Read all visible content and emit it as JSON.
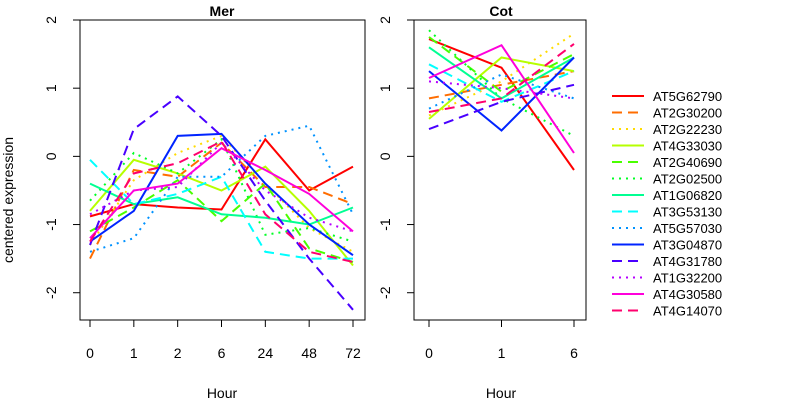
{
  "chart_data": [
    {
      "type": "line",
      "title": "Mer",
      "xlabel": "Hour",
      "ylabel": "centered expression",
      "x": [
        "0",
        "1",
        "2",
        "6",
        "24",
        "48",
        "72"
      ],
      "ylim": [
        -2.4,
        2
      ],
      "yticks": [
        -2,
        -1,
        0,
        1,
        2
      ],
      "grid": false,
      "series": [
        {
          "name": "AT5G62790",
          "values": [
            -0.88,
            -0.7,
            -0.75,
            -0.78,
            0.25,
            -0.5,
            -0.15
          ]
        },
        {
          "name": "AT2G30200",
          "values": [
            -1.5,
            -0.2,
            -0.3,
            0.2,
            -0.45,
            -0.45,
            -0.7
          ]
        },
        {
          "name": "AT2G22230",
          "values": [
            -1.3,
            -0.35,
            0.05,
            0.3,
            -0.4,
            -1.05,
            -1.4
          ]
        },
        {
          "name": "AT4G33030",
          "values": [
            -0.8,
            -0.05,
            -0.25,
            -0.5,
            -0.15,
            -0.8,
            -1.6
          ]
        },
        {
          "name": "AT2G40690",
          "values": [
            -1.1,
            -0.75,
            -0.35,
            -0.95,
            -0.4,
            -1.35,
            -1.55
          ]
        },
        {
          "name": "AT2G02500",
          "values": [
            -0.65,
            0.05,
            -0.25,
            0.25,
            -1.15,
            -1.05,
            -1.25
          ]
        },
        {
          "name": "AT1G06820",
          "values": [
            -0.4,
            -0.7,
            -0.6,
            -0.85,
            -0.9,
            -1.0,
            -0.75
          ]
        },
        {
          "name": "AT3G53130",
          "values": [
            -0.05,
            -0.7,
            -0.55,
            -0.3,
            -1.4,
            -1.5,
            -1.5
          ]
        },
        {
          "name": "AT5G57030",
          "values": [
            -1.4,
            -1.2,
            -0.3,
            -0.3,
            0.3,
            0.45,
            -0.85
          ]
        },
        {
          "name": "AT3G04870",
          "values": [
            -1.25,
            -0.8,
            0.3,
            0.33,
            -0.4,
            -1.0,
            -1.45
          ]
        },
        {
          "name": "AT4G31780",
          "values": [
            -1.3,
            0.4,
            0.88,
            0.3,
            -0.65,
            -1.5,
            -2.25
          ]
        },
        {
          "name": "AT1G32200",
          "values": [
            -0.85,
            -0.5,
            -0.45,
            0.2,
            -0.5,
            -0.9,
            -1.1
          ]
        },
        {
          "name": "AT4G30580",
          "values": [
            -1.2,
            -0.5,
            -0.4,
            0.12,
            -0.2,
            -0.55,
            -1.1
          ]
        },
        {
          "name": "AT4G14070",
          "values": [
            -1.25,
            -0.25,
            -0.1,
            0.22,
            -0.85,
            -1.4,
            -1.55
          ]
        }
      ]
    },
    {
      "type": "line",
      "title": "Cot",
      "xlabel": "Hour",
      "ylabel": "",
      "x": [
        "0",
        "1",
        "6"
      ],
      "ylim": [
        -2.4,
        2
      ],
      "yticks": [
        -2,
        -1,
        0,
        1,
        2
      ],
      "grid": false,
      "series": [
        {
          "name": "AT5G62790",
          "values": [
            1.72,
            1.3,
            -0.2
          ]
        },
        {
          "name": "AT2G30200",
          "values": [
            0.85,
            1.05,
            1.25
          ]
        },
        {
          "name": "AT2G22230",
          "values": [
            0.6,
            1.1,
            1.8
          ]
        },
        {
          "name": "AT4G33030",
          "values": [
            0.55,
            1.45,
            1.25
          ]
        },
        {
          "name": "AT2G40690",
          "values": [
            1.75,
            0.95,
            1.5
          ]
        },
        {
          "name": "AT2G02500",
          "values": [
            1.85,
            0.85,
            0.3
          ]
        },
        {
          "name": "AT1G06820",
          "values": [
            1.6,
            0.85,
            1.45
          ]
        },
        {
          "name": "AT3G53130",
          "values": [
            1.35,
            0.8,
            1.25
          ]
        },
        {
          "name": "AT5G57030",
          "values": [
            0.7,
            1.2,
            0.85
          ]
        },
        {
          "name": "AT3G04870",
          "values": [
            1.25,
            0.38,
            1.45
          ]
        },
        {
          "name": "AT4G31780",
          "values": [
            0.4,
            0.8,
            1.05
          ]
        },
        {
          "name": "AT1G32200",
          "values": [
            1.1,
            1.0,
            0.85
          ]
        },
        {
          "name": "AT4G30580",
          "values": [
            1.15,
            1.63,
            0.05
          ]
        },
        {
          "name": "AT4G14070",
          "values": [
            0.65,
            0.85,
            1.65
          ]
        }
      ]
    }
  ],
  "legend": {
    "placement": "right",
    "items": [
      {
        "name": "AT5G62790",
        "color": "#FF0000",
        "dash": "solid"
      },
      {
        "name": "AT2G30200",
        "color": "#FF6D00",
        "dash": "dashed"
      },
      {
        "name": "AT2G22230",
        "color": "#FFDB00",
        "dash": "dotted"
      },
      {
        "name": "AT4G33030",
        "color": "#B6FF00",
        "dash": "solid"
      },
      {
        "name": "AT2G40690",
        "color": "#49FF00",
        "dash": "dashed"
      },
      {
        "name": "AT2G02500",
        "color": "#00FF24",
        "dash": "dotted"
      },
      {
        "name": "AT1G06820",
        "color": "#00FF92",
        "dash": "solid"
      },
      {
        "name": "AT3G53130",
        "color": "#00FFFF",
        "dash": "dashed"
      },
      {
        "name": "AT5G57030",
        "color": "#0092FF",
        "dash": "dotted"
      },
      {
        "name": "AT3G04870",
        "color": "#0024FF",
        "dash": "solid"
      },
      {
        "name": "AT4G31780",
        "color": "#4900FF",
        "dash": "dashed"
      },
      {
        "name": "AT1G32200",
        "color": "#B600FF",
        "dash": "dotted"
      },
      {
        "name": "AT4G30580",
        "color": "#FF00DB",
        "dash": "solid"
      },
      {
        "name": "AT4G14070",
        "color": "#FF006D",
        "dash": "dashed"
      }
    ]
  }
}
